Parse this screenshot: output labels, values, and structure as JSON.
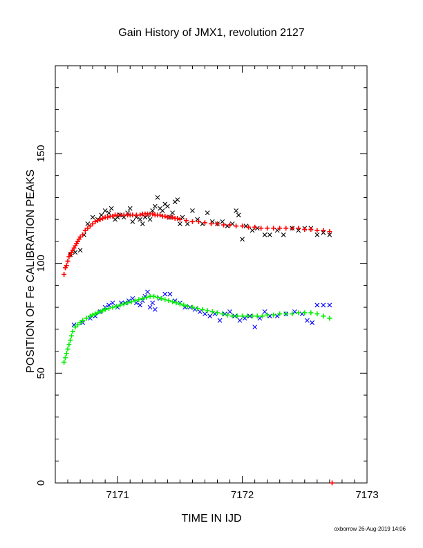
{
  "chart_data": {
    "type": "scatter",
    "title": "Gain History of JMX1, revolution 2127",
    "xlabel": "TIME IN IJD",
    "ylabel": "POSITION OF Fe CALIBRATION PEAKS",
    "xlim": [
      7170.5,
      7173.0
    ],
    "ylim": [
      0,
      190
    ],
    "xticks": [
      7171,
      7172,
      7173
    ],
    "yticks": [
      0,
      50,
      100,
      150
    ],
    "grid": false,
    "legend": "none",
    "footer": "oxborrow 26-Aug-2019 14:06",
    "series": [
      {
        "marker": "x",
        "color": "#000000",
        "points": [
          [
            7170.62,
            104
          ],
          [
            7170.66,
            105
          ],
          [
            7170.7,
            106
          ],
          [
            7170.73,
            113
          ],
          [
            7170.76,
            118
          ],
          [
            7170.8,
            121
          ],
          [
            7170.84,
            120
          ],
          [
            7170.87,
            122
          ],
          [
            7170.9,
            124
          ],
          [
            7170.93,
            123
          ],
          [
            7170.95,
            125
          ],
          [
            7170.98,
            120
          ],
          [
            7171.0,
            121
          ],
          [
            7171.02,
            122
          ],
          [
            7171.05,
            121
          ],
          [
            7171.08,
            123
          ],
          [
            7171.1,
            125
          ],
          [
            7171.12,
            119
          ],
          [
            7171.15,
            121
          ],
          [
            7171.18,
            120
          ],
          [
            7171.2,
            118
          ],
          [
            7171.22,
            121
          ],
          [
            7171.24,
            122
          ],
          [
            7171.26,
            120
          ],
          [
            7171.28,
            124
          ],
          [
            7171.3,
            126
          ],
          [
            7171.32,
            130
          ],
          [
            7171.34,
            125
          ],
          [
            7171.36,
            124
          ],
          [
            7171.38,
            127
          ],
          [
            7171.4,
            126
          ],
          [
            7171.42,
            121
          ],
          [
            7171.44,
            123
          ],
          [
            7171.46,
            128
          ],
          [
            7171.48,
            129
          ],
          [
            7171.5,
            118
          ],
          [
            7171.52,
            121
          ],
          [
            7171.56,
            118
          ],
          [
            7171.6,
            124
          ],
          [
            7171.64,
            120
          ],
          [
            7171.68,
            118
          ],
          [
            7171.72,
            123
          ],
          [
            7171.76,
            119
          ],
          [
            7171.8,
            118
          ],
          [
            7171.84,
            119
          ],
          [
            7171.88,
            117
          ],
          [
            7171.92,
            118
          ],
          [
            7171.95,
            124
          ],
          [
            7171.97,
            122
          ],
          [
            7172.0,
            111
          ],
          [
            7172.03,
            117
          ],
          [
            7172.08,
            115
          ],
          [
            7172.12,
            116
          ],
          [
            7172.18,
            113
          ],
          [
            7172.22,
            113
          ],
          [
            7172.28,
            115
          ],
          [
            7172.33,
            113
          ],
          [
            7172.4,
            116
          ],
          [
            7172.45,
            115
          ],
          [
            7172.5,
            116
          ],
          [
            7172.55,
            116
          ],
          [
            7172.6,
            113
          ],
          [
            7172.65,
            114
          ],
          [
            7172.7,
            113
          ]
        ]
      },
      {
        "marker": "+",
        "color": "#ff0000",
        "points": [
          [
            7170.57,
            95
          ],
          [
            7170.58,
            98
          ],
          [
            7170.59,
            99
          ],
          [
            7170.6,
            101
          ],
          [
            7170.61,
            103
          ],
          [
            7170.62,
            104
          ],
          [
            7170.63,
            105
          ],
          [
            7170.64,
            106
          ],
          [
            7170.65,
            107
          ],
          [
            7170.66,
            108
          ],
          [
            7170.67,
            109
          ],
          [
            7170.68,
            110
          ],
          [
            7170.69,
            111
          ],
          [
            7170.7,
            112
          ],
          [
            7170.72,
            113
          ],
          [
            7170.74,
            115
          ],
          [
            7170.76,
            116
          ],
          [
            7170.78,
            117
          ],
          [
            7170.8,
            118
          ],
          [
            7170.82,
            119
          ],
          [
            7170.84,
            119.5
          ],
          [
            7170.86,
            120
          ],
          [
            7170.88,
            120.5
          ],
          [
            7170.9,
            121
          ],
          [
            7170.92,
            121
          ],
          [
            7170.94,
            121.5
          ],
          [
            7170.96,
            121.5
          ],
          [
            7170.98,
            122
          ],
          [
            7171.0,
            122
          ],
          [
            7171.02,
            122
          ],
          [
            7171.05,
            122
          ],
          [
            7171.08,
            122
          ],
          [
            7171.1,
            122
          ],
          [
            7171.12,
            122
          ],
          [
            7171.15,
            122
          ],
          [
            7171.18,
            122
          ],
          [
            7171.2,
            122.5
          ],
          [
            7171.22,
            122.5
          ],
          [
            7171.24,
            122.5
          ],
          [
            7171.26,
            122.5
          ],
          [
            7171.28,
            122.5
          ],
          [
            7171.3,
            122
          ],
          [
            7171.32,
            122
          ],
          [
            7171.34,
            122
          ],
          [
            7171.36,
            121.5
          ],
          [
            7171.38,
            121.5
          ],
          [
            7171.4,
            121
          ],
          [
            7171.42,
            121
          ],
          [
            7171.44,
            121
          ],
          [
            7171.46,
            120.5
          ],
          [
            7171.48,
            120.5
          ],
          [
            7171.5,
            120
          ],
          [
            7171.55,
            119.5
          ],
          [
            7171.6,
            119
          ],
          [
            7171.65,
            119
          ],
          [
            7171.7,
            118.5
          ],
          [
            7171.75,
            118
          ],
          [
            7171.8,
            118
          ],
          [
            7171.85,
            117.5
          ],
          [
            7171.9,
            117.5
          ],
          [
            7171.95,
            117
          ],
          [
            7172.0,
            117
          ],
          [
            7172.05,
            116.5
          ],
          [
            7172.1,
            116.5
          ],
          [
            7172.15,
            116
          ],
          [
            7172.2,
            116
          ],
          [
            7172.25,
            116
          ],
          [
            7172.3,
            116
          ],
          [
            7172.35,
            116
          ],
          [
            7172.4,
            116
          ],
          [
            7172.45,
            116
          ],
          [
            7172.5,
            115.5
          ],
          [
            7172.55,
            115.5
          ],
          [
            7172.6,
            115
          ],
          [
            7172.65,
            115
          ],
          [
            7172.7,
            114.5
          ],
          [
            7172.72,
            0
          ]
        ]
      },
      {
        "marker": "x",
        "color": "#0000ff",
        "points": [
          [
            7170.65,
            72
          ],
          [
            7170.72,
            73
          ],
          [
            7170.78,
            75
          ],
          [
            7170.82,
            76
          ],
          [
            7170.86,
            78
          ],
          [
            7170.9,
            80
          ],
          [
            7170.93,
            81
          ],
          [
            7170.96,
            82
          ],
          [
            7171.0,
            80
          ],
          [
            7171.03,
            82
          ],
          [
            7171.06,
            82
          ],
          [
            7171.09,
            83
          ],
          [
            7171.12,
            84
          ],
          [
            7171.15,
            82
          ],
          [
            7171.18,
            81
          ],
          [
            7171.2,
            83
          ],
          [
            7171.22,
            85
          ],
          [
            7171.24,
            87
          ],
          [
            7171.26,
            80
          ],
          [
            7171.28,
            82
          ],
          [
            7171.3,
            79
          ],
          [
            7171.34,
            84
          ],
          [
            7171.38,
            86
          ],
          [
            7171.42,
            86
          ],
          [
            7171.46,
            83
          ],
          [
            7171.5,
            82
          ],
          [
            7171.54,
            80
          ],
          [
            7171.58,
            80
          ],
          [
            7171.62,
            79
          ],
          [
            7171.66,
            78
          ],
          [
            7171.7,
            77
          ],
          [
            7171.74,
            76
          ],
          [
            7171.78,
            77
          ],
          [
            7171.82,
            74
          ],
          [
            7171.86,
            77
          ],
          [
            7171.9,
            78
          ],
          [
            7171.94,
            76
          ],
          [
            7171.98,
            74
          ],
          [
            7172.02,
            75
          ],
          [
            7172.06,
            76
          ],
          [
            7172.1,
            71
          ],
          [
            7172.14,
            75
          ],
          [
            7172.18,
            78
          ],
          [
            7172.22,
            76
          ],
          [
            7172.28,
            76
          ],
          [
            7172.35,
            77
          ],
          [
            7172.42,
            78
          ],
          [
            7172.48,
            77
          ],
          [
            7172.52,
            74
          ],
          [
            7172.56,
            73
          ],
          [
            7172.6,
            81
          ],
          [
            7172.65,
            81
          ],
          [
            7172.7,
            81
          ]
        ]
      },
      {
        "marker": "+",
        "color": "#00ee00",
        "points": [
          [
            7170.57,
            55
          ],
          [
            7170.58,
            57
          ],
          [
            7170.59,
            59
          ],
          [
            7170.6,
            61
          ],
          [
            7170.61,
            63
          ],
          [
            7170.62,
            65
          ],
          [
            7170.63,
            67
          ],
          [
            7170.64,
            69
          ],
          [
            7170.66,
            71
          ],
          [
            7170.68,
            72
          ],
          [
            7170.7,
            73
          ],
          [
            7170.72,
            74
          ],
          [
            7170.75,
            75
          ],
          [
            7170.78,
            76
          ],
          [
            7170.8,
            76.5
          ],
          [
            7170.82,
            77
          ],
          [
            7170.84,
            77.5
          ],
          [
            7170.86,
            78
          ],
          [
            7170.88,
            78.5
          ],
          [
            7170.9,
            79
          ],
          [
            7170.93,
            79.5
          ],
          [
            7170.96,
            80
          ],
          [
            7170.99,
            80.5
          ],
          [
            7171.02,
            81
          ],
          [
            7171.05,
            81.5
          ],
          [
            7171.08,
            82
          ],
          [
            7171.11,
            82.5
          ],
          [
            7171.14,
            83
          ],
          [
            7171.17,
            83.5
          ],
          [
            7171.2,
            84
          ],
          [
            7171.23,
            84.5
          ],
          [
            7171.26,
            85
          ],
          [
            7171.29,
            85
          ],
          [
            7171.32,
            84.5
          ],
          [
            7171.35,
            84
          ],
          [
            7171.38,
            83.5
          ],
          [
            7171.41,
            83
          ],
          [
            7171.44,
            82.5
          ],
          [
            7171.47,
            82
          ],
          [
            7171.5,
            81.5
          ],
          [
            7171.53,
            81
          ],
          [
            7171.56,
            80.5
          ],
          [
            7171.6,
            80
          ],
          [
            7171.64,
            79.5
          ],
          [
            7171.68,
            79
          ],
          [
            7171.72,
            78.5
          ],
          [
            7171.76,
            78
          ],
          [
            7171.8,
            77.5
          ],
          [
            7171.84,
            77
          ],
          [
            7171.88,
            76.5
          ],
          [
            7171.92,
            76
          ],
          [
            7171.96,
            76
          ],
          [
            7172.0,
            76
          ],
          [
            7172.04,
            76
          ],
          [
            7172.08,
            76
          ],
          [
            7172.12,
            76
          ],
          [
            7172.16,
            76
          ],
          [
            7172.2,
            76.5
          ],
          [
            7172.25,
            76.5
          ],
          [
            7172.3,
            77
          ],
          [
            7172.35,
            77
          ],
          [
            7172.4,
            77
          ],
          [
            7172.45,
            77.5
          ],
          [
            7172.5,
            77.5
          ],
          [
            7172.55,
            77.5
          ],
          [
            7172.6,
            77
          ],
          [
            7172.65,
            76
          ],
          [
            7172.7,
            75
          ]
        ]
      }
    ]
  }
}
